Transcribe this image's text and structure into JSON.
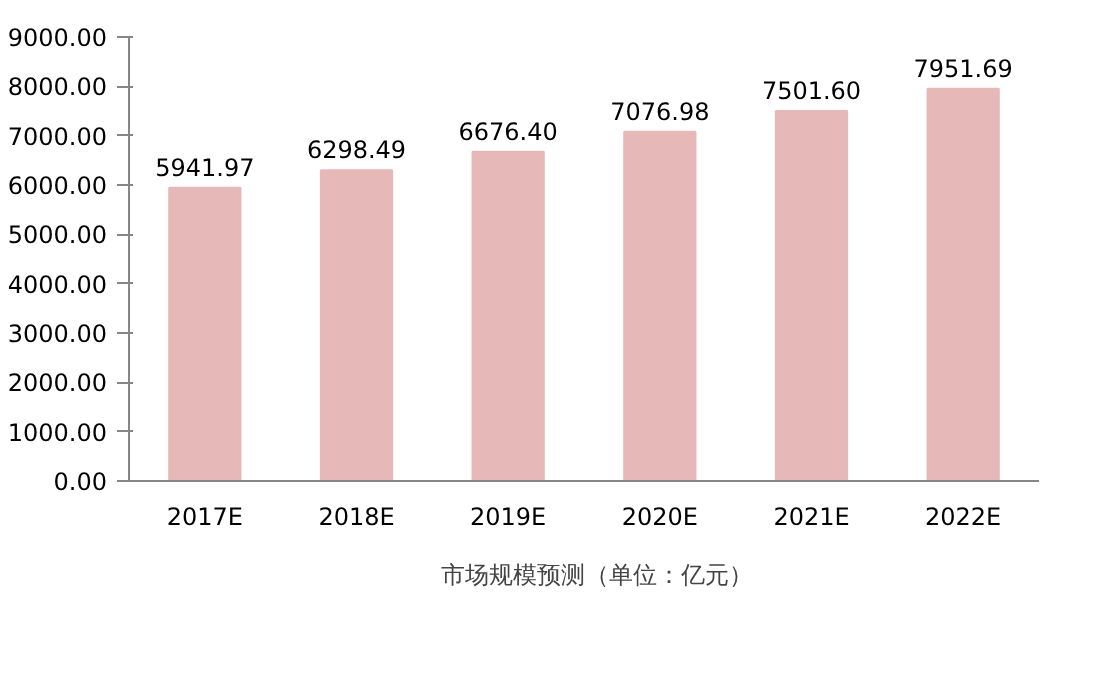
{
  "chart_data": {
    "type": "bar",
    "categories": [
      "2017E",
      "2018E",
      "2019E",
      "2020E",
      "2021E",
      "2022E"
    ],
    "series": [
      {
        "name": "市场规模预测（单位：亿元）",
        "color": "#e6b9b8",
        "values": [
          5941.97,
          6298.49,
          6676.4,
          7076.98,
          7501.6,
          7951.69
        ],
        "value_labels": [
          "5941.97",
          "6298.49",
          "6676.40",
          "7076.98",
          "7501.60",
          "7951.69"
        ]
      }
    ],
    "ylim": [
      0,
      9000
    ],
    "yticks": [
      {
        "value": 0,
        "label": "0.00"
      },
      {
        "value": 1000,
        "label": "1000.00"
      },
      {
        "value": 2000,
        "label": "2000.00"
      },
      {
        "value": 3000,
        "label": "3000.00"
      },
      {
        "value": 4000,
        "label": "4000.00"
      },
      {
        "value": 5000,
        "label": "5000.00"
      },
      {
        "value": 6000,
        "label": "6000.00"
      },
      {
        "value": 7000,
        "label": "7000.00"
      },
      {
        "value": 8000,
        "label": "8000.00"
      },
      {
        "value": 9000,
        "label": "9000.00"
      }
    ],
    "grid": false,
    "legend": "bottom"
  }
}
